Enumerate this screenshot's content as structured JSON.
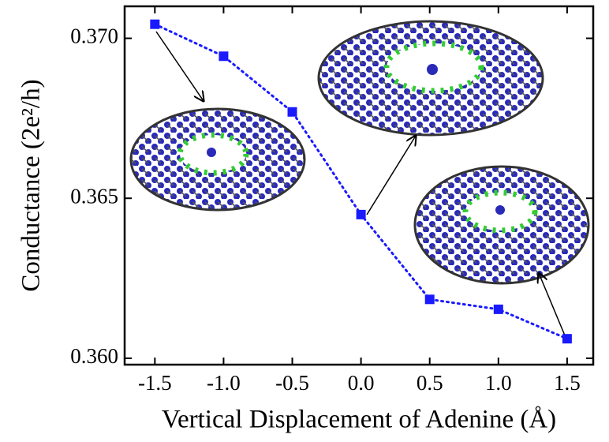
{
  "chart_data": {
    "type": "line",
    "x_label": "Vertical Displacement of Adenine (Å)",
    "y_label": "Conductance (2e²/h)",
    "x": [
      -1.5,
      -1.0,
      -0.5,
      0.0,
      0.5,
      1.0,
      1.5
    ],
    "series": [
      {
        "color": "#1a1aff",
        "values": [
          0.37044,
          0.36944,
          0.3677,
          0.36449,
          0.36184,
          0.36153,
          0.36061
        ]
      }
    ],
    "xlim": [
      -1.72,
      1.69
    ],
    "ylim": [
      0.3598,
      0.371
    ],
    "xticks": [
      -1.5,
      {
        "value": -1.0,
        "label": "-1.0"
      },
      -0.5,
      {
        "value": 0.0,
        "label": "0.0"
      },
      0.5,
      {
        "value": 1.0,
        "label": "1.0"
      },
      1.5
    ],
    "yticks": [
      {
        "value": 0.36,
        "label": "0.360"
      },
      {
        "value": 0.365,
        "label": "0.365"
      },
      {
        "value": 0.37,
        "label": "0.370"
      }
    ]
  }
}
